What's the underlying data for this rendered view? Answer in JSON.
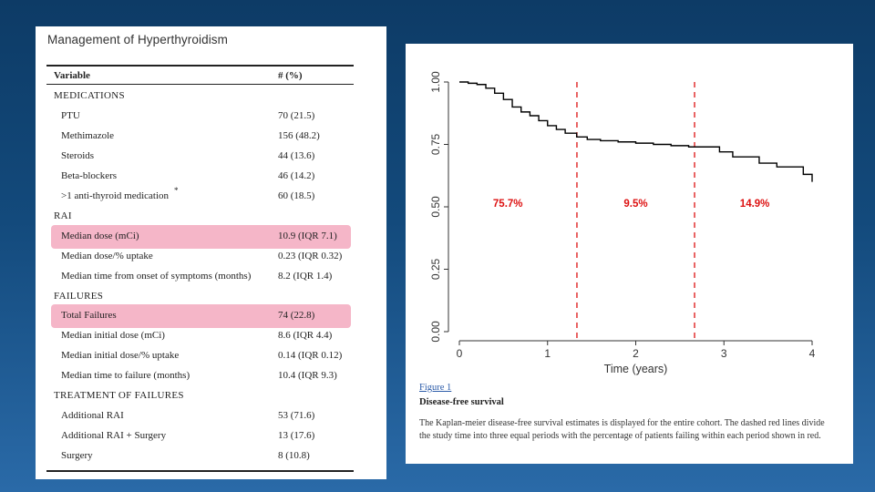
{
  "table": {
    "title": "Management of Hyperthyroidism",
    "header": {
      "variable": "Variable",
      "value": "# (%)"
    },
    "rows": [
      {
        "type": "section",
        "label": "MEDICATIONS"
      },
      {
        "type": "item",
        "label": "PTU",
        "value": "70 (21.5)"
      },
      {
        "type": "item",
        "label": "Methimazole",
        "value": "156 (48.2)"
      },
      {
        "type": "item",
        "label": "Steroids",
        "value": "44 (13.6)"
      },
      {
        "type": "item",
        "label": "Beta-blockers",
        "value": "46 (14.2)"
      },
      {
        "type": "item",
        "label": ">1 anti-thyroid medication",
        "value": "60 (18.5)",
        "footnote": "*"
      },
      {
        "type": "section",
        "label": "RAI"
      },
      {
        "type": "item",
        "label": "Median dose (mCi)",
        "value": "10.9 (IQR 7.1)",
        "highlight": true
      },
      {
        "type": "item",
        "label": "Median dose/% uptake",
        "value": "0.23 (IQR 0.32)"
      },
      {
        "type": "item",
        "label": "Median time from onset of symptoms (months)",
        "value": "8.2 (IQR 1.4)"
      },
      {
        "type": "section",
        "label": "FAILURES"
      },
      {
        "type": "item",
        "label": "Total Failures",
        "value": "74 (22.8)",
        "highlight": true
      },
      {
        "type": "item",
        "label": "Median initial dose (mCi)",
        "value": "8.6 (IQR 4.4)"
      },
      {
        "type": "item",
        "label": "Median initial dose/% uptake",
        "value": "0.14 (IQR 0.12)"
      },
      {
        "type": "item",
        "label": "Median time to failure (months)",
        "value": "10.4 (IQR 9.3)"
      },
      {
        "type": "section",
        "label": "TREATMENT OF FAILURES"
      },
      {
        "type": "item",
        "label": "Additional RAI",
        "value": "53 (71.6)"
      },
      {
        "type": "item",
        "label": "Additional RAI + Surgery",
        "value": "13 (17.6)"
      },
      {
        "type": "item",
        "label": "Surgery",
        "value": "8 (10.8)"
      }
    ]
  },
  "figure": {
    "label": "Figure 1",
    "title": "Disease-free survival",
    "caption": "The Kaplan-meier disease-free survival estimates is displayed for the entire cohort. The dashed red lines divide the study time into three equal periods with the percentage of patients failing within each period shown in red."
  },
  "chart_data": {
    "type": "line",
    "title": "",
    "xlabel": "Time (years)",
    "ylabel": "",
    "xlim": [
      0,
      4
    ],
    "ylim": [
      0,
      1
    ],
    "x_ticks": [
      "0",
      "1",
      "2",
      "3",
      "4"
    ],
    "y_ticks": [
      "0.00",
      "0.25",
      "0.50",
      "0.75",
      "1.00"
    ],
    "series": [
      {
        "name": "Disease-free survival",
        "x": [
          0,
          0.1,
          0.2,
          0.3,
          0.4,
          0.5,
          0.6,
          0.7,
          0.8,
          0.9,
          1.0,
          1.1,
          1.2,
          1.33,
          1.45,
          1.6,
          1.8,
          2.0,
          2.2,
          2.4,
          2.6,
          2.8,
          2.95,
          3.1,
          3.4,
          3.6,
          3.9,
          4.0
        ],
        "y": [
          1.0,
          0.995,
          0.99,
          0.975,
          0.955,
          0.93,
          0.9,
          0.88,
          0.865,
          0.845,
          0.825,
          0.81,
          0.795,
          0.78,
          0.77,
          0.765,
          0.76,
          0.755,
          0.75,
          0.745,
          0.74,
          0.74,
          0.72,
          0.7,
          0.675,
          0.66,
          0.63,
          0.6
        ]
      }
    ],
    "dividers": [
      1.333,
      2.667
    ],
    "annotations": [
      {
        "x": 0.55,
        "y": 0.5,
        "text": "75.7%"
      },
      {
        "x": 2.0,
        "y": 0.5,
        "text": "9.5%"
      },
      {
        "x": 3.35,
        "y": 0.5,
        "text": "14.9%"
      }
    ],
    "colors": {
      "line": "#000000",
      "divider": "#dd1111",
      "annotation": "#dd1111"
    }
  }
}
